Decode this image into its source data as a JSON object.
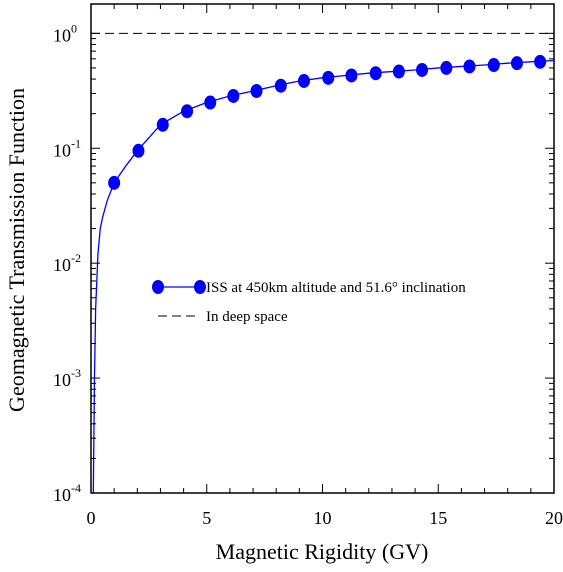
{
  "chart_data": {
    "type": "line",
    "xlabel": "Magnetic Rigidity (GV)",
    "ylabel": "Geomagnetic Transmission Function",
    "xlim": [
      0,
      20
    ],
    "ylim": [
      0.0001,
      1.8
    ],
    "yscale": "log",
    "x_ticks": [
      "0",
      "5",
      "10",
      "15",
      "20"
    ],
    "y_ticks": [
      {
        "base": "10",
        "exp": "-4"
      },
      {
        "base": "10",
        "exp": "-3"
      },
      {
        "base": "10",
        "exp": "-2"
      },
      {
        "base": "10",
        "exp": "-1"
      },
      {
        "base": "10",
        "exp": "0"
      }
    ],
    "grid": false,
    "legend_position": "center-left",
    "series": [
      {
        "name": "ISS at 450km altitude and 51.6° inclination",
        "color": "#0000ff",
        "style": "solid-line-with-markers",
        "curve": {
          "x": [
            0.1,
            0.15,
            0.2,
            0.3,
            0.4,
            0.5,
            0.7,
            1.0,
            1.5,
            2.0,
            3.0,
            4.0,
            5.0,
            6.0,
            7.0,
            8.0,
            9.0,
            10.0,
            11.0,
            12.0,
            13.0,
            14.0,
            15.0,
            16.0,
            17.0,
            18.0,
            19.0,
            20.0
          ],
          "y": [
            0.0001,
            0.001,
            0.004,
            0.012,
            0.02,
            0.025,
            0.035,
            0.05,
            0.07,
            0.095,
            0.16,
            0.21,
            0.25,
            0.285,
            0.315,
            0.35,
            0.385,
            0.41,
            0.43,
            0.45,
            0.465,
            0.48,
            0.5,
            0.515,
            0.53,
            0.55,
            0.565,
            0.58
          ]
        },
        "markers": {
          "x": [
            1.0,
            2.05,
            3.1,
            4.15,
            5.15,
            6.15,
            7.15,
            8.2,
            9.2,
            10.25,
            11.25,
            12.3,
            13.3,
            14.3,
            15.35,
            16.35,
            17.4,
            18.4,
            19.4
          ],
          "y": [
            0.05,
            0.095,
            0.16,
            0.21,
            0.25,
            0.285,
            0.315,
            0.35,
            0.385,
            0.41,
            0.43,
            0.45,
            0.465,
            0.48,
            0.5,
            0.515,
            0.53,
            0.55,
            0.565
          ]
        }
      },
      {
        "name": "In deep space",
        "color": "#000000",
        "style": "dashed-line",
        "curve": {
          "x": [
            0,
            20
          ],
          "y": [
            1,
            1
          ]
        }
      }
    ]
  }
}
